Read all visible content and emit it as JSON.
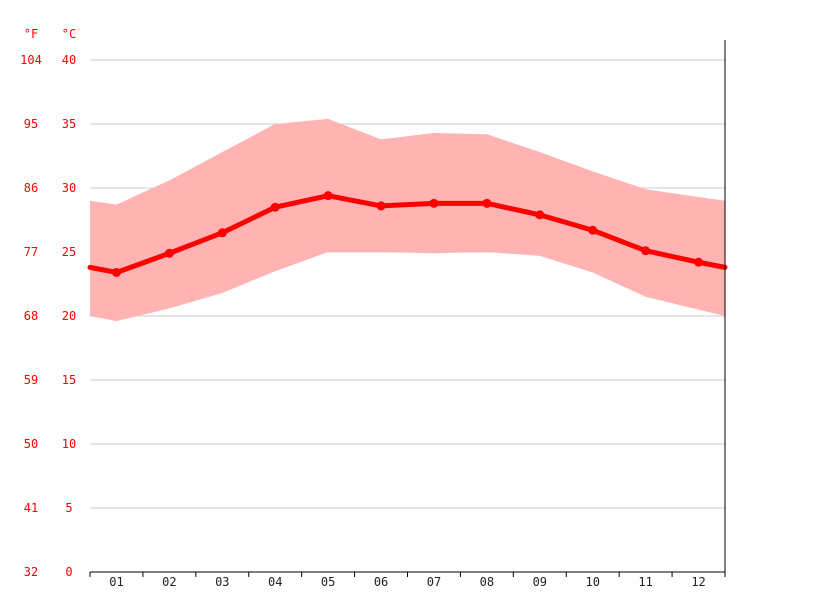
{
  "chart_data": {
    "type": "line",
    "x_ticks": [
      "01",
      "02",
      "03",
      "04",
      "05",
      "06",
      "07",
      "08",
      "09",
      "10",
      "11",
      "12"
    ],
    "y_unit_left": "°F",
    "y_unit_right": "°C",
    "ylim_c": [
      0,
      40
    ],
    "y_ticks_c": [
      "0",
      "5",
      "10",
      "15",
      "20",
      "25",
      "30",
      "35",
      "40"
    ],
    "y_ticks_f": [
      "32",
      "41",
      "50",
      "59",
      "68",
      "77",
      "86",
      "95",
      "104"
    ],
    "grid": true,
    "series": [
      {
        "values": [
          23.4,
          24.9,
          26.5,
          28.5,
          29.4,
          28.6,
          28.8,
          28.8,
          27.9,
          26.7,
          25.1,
          24.2
        ]
      }
    ],
    "range_band": {
      "min": [
        19.6,
        20.6,
        21.8,
        23.5,
        25.0,
        25.0,
        24.9,
        25.0,
        24.7,
        23.4,
        21.5,
        20.5
      ],
      "max": [
        28.7,
        30.6,
        32.8,
        35.0,
        35.4,
        33.8,
        34.3,
        34.2,
        32.8,
        31.3,
        29.9,
        29.3
      ],
      "edge_min": [
        20.0,
        20.0
      ],
      "edge_max": [
        29.0,
        29.0
      ]
    },
    "colors": {
      "line": "#ff0000",
      "band": "#ffb3b3",
      "grid": "#cccccc",
      "axis": "#000000",
      "tick_text": "#ff0000"
    }
  }
}
